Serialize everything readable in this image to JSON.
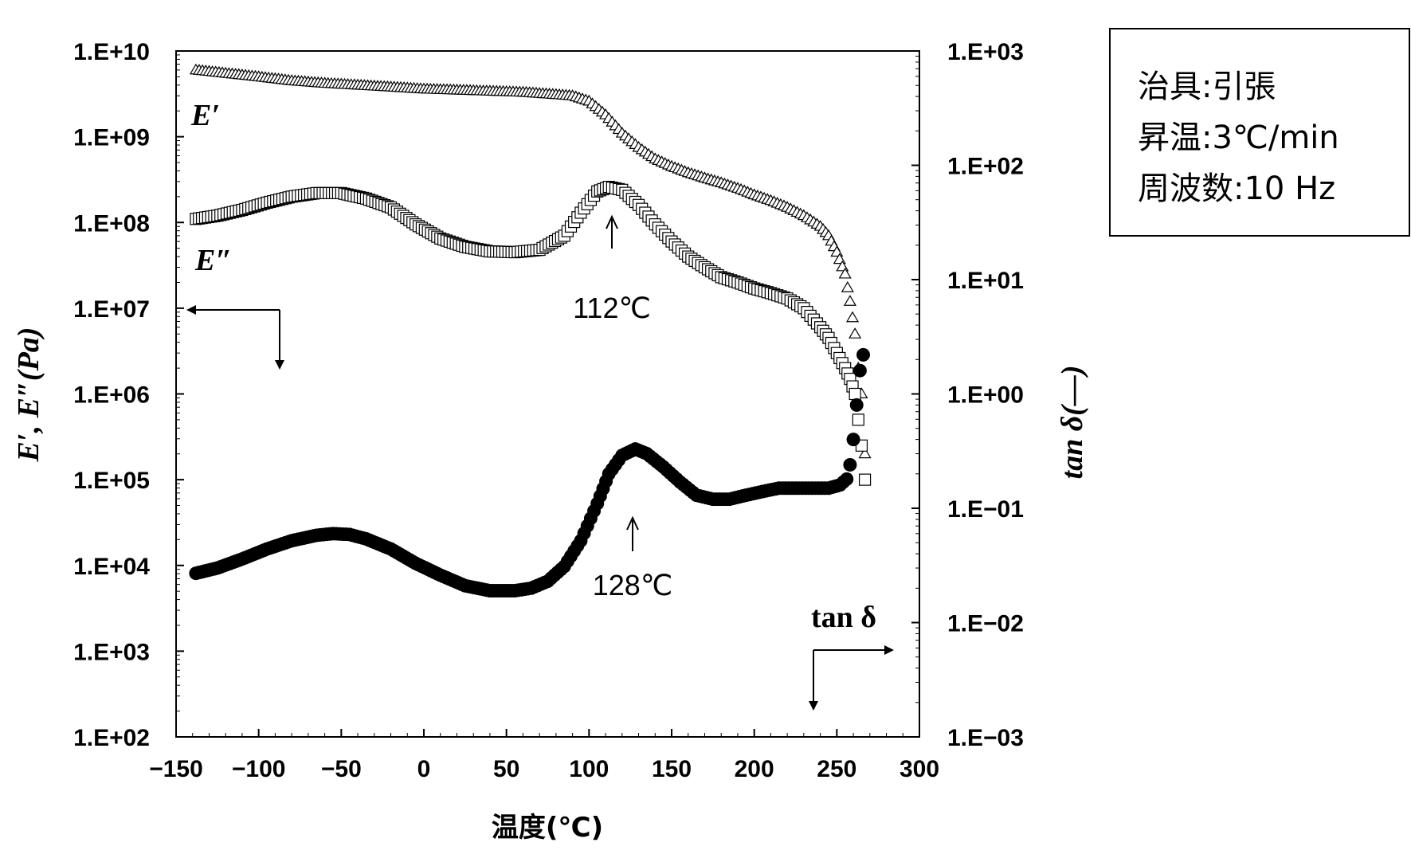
{
  "chart_data": {
    "type": "scatter",
    "xlabel": "温度(℃)",
    "ylabel_left": "E′, E″(Pa)",
    "ylabel_right": "tan δ(—)",
    "xlim": [
      -150,
      300
    ],
    "ylim_left": [
      100,
      10000000000
    ],
    "ylim_right": [
      0.001,
      1000
    ],
    "yscale": "log",
    "x_ticks": [
      "−150",
      "−100",
      "−50",
      "0",
      "50",
      "100",
      "150",
      "200",
      "250",
      "300"
    ],
    "y_ticks_left": [
      "1.E+02",
      "1.E+03",
      "1.E+04",
      "1.E+05",
      "1.E+06",
      "1.E+07",
      "1.E+08",
      "1.E+09",
      "1.E+10"
    ],
    "y_ticks_right": [
      "1.E−03",
      "1.E−02",
      "1.E−01",
      "1.E+00",
      "1.E+01",
      "1.E+02",
      "1.E+03"
    ],
    "series": [
      {
        "name": "E′",
        "axis": "left",
        "marker": "triangle-open",
        "x": [
          -138,
          -120,
          -100,
          -80,
          -60,
          -40,
          -20,
          0,
          20,
          40,
          60,
          80,
          90,
          100,
          110,
          120,
          130,
          140,
          150,
          160,
          170,
          180,
          190,
          200,
          210,
          220,
          230,
          240,
          245,
          250,
          255,
          258,
          261,
          263,
          265,
          267
        ],
        "y": [
          6000000000,
          5500000000,
          5000000000,
          4500000000,
          4200000000,
          4000000000,
          3800000000,
          3600000000,
          3500000000,
          3400000000,
          3300000000,
          3100000000,
          3000000000,
          2600000000,
          1800000000,
          1100000000,
          750000000,
          550000000,
          450000000,
          380000000,
          330000000,
          290000000,
          250000000,
          210000000,
          180000000,
          150000000,
          120000000,
          90000000,
          70000000,
          45000000,
          25000000,
          12000000,
          5000000,
          2000000,
          1000000,
          200000
        ]
      },
      {
        "name": "E″",
        "axis": "left",
        "marker": "square-open",
        "x": [
          -138,
          -125,
          -110,
          -95,
          -80,
          -65,
          -50,
          -35,
          -20,
          -5,
          10,
          25,
          40,
          55,
          70,
          85,
          95,
          105,
          112,
          120,
          130,
          140,
          150,
          160,
          170,
          180,
          190,
          200,
          210,
          220,
          230,
          240,
          245,
          250,
          255,
          258,
          261,
          263,
          265,
          267
        ],
        "y": [
          110000000,
          120000000,
          140000000,
          170000000,
          200000000,
          220000000,
          220000000,
          190000000,
          150000000,
          95000000,
          65000000,
          52000000,
          46000000,
          45000000,
          48000000,
          70000000,
          130000000,
          230000000,
          260000000,
          240000000,
          160000000,
          95000000,
          60000000,
          40000000,
          30000000,
          23000000,
          20000000,
          17000000,
          15000000,
          13000000,
          10000000,
          6000000,
          4500000,
          3000000,
          2000000,
          1500000,
          1000000,
          500000,
          250000,
          100000
        ]
      },
      {
        "name": "tan δ",
        "axis": "right",
        "marker": "circle-filled",
        "x": [
          -138,
          -125,
          -110,
          -95,
          -80,
          -65,
          -55,
          -45,
          -35,
          -20,
          -5,
          10,
          25,
          40,
          55,
          65,
          75,
          85,
          95,
          105,
          112,
          120,
          128,
          135,
          145,
          155,
          165,
          175,
          185,
          195,
          205,
          215,
          225,
          235,
          245,
          252,
          256,
          258,
          260,
          262,
          264,
          266
        ],
        "y": [
          0.027,
          0.03,
          0.036,
          0.044,
          0.052,
          0.058,
          0.06,
          0.059,
          0.054,
          0.044,
          0.033,
          0.026,
          0.021,
          0.019,
          0.019,
          0.02,
          0.023,
          0.031,
          0.052,
          0.11,
          0.2,
          0.29,
          0.33,
          0.3,
          0.23,
          0.17,
          0.13,
          0.12,
          0.12,
          0.13,
          0.14,
          0.15,
          0.15,
          0.15,
          0.15,
          0.16,
          0.18,
          0.24,
          0.4,
          0.8,
          1.6,
          2.2
        ]
      }
    ],
    "series_labels": {
      "E_prime": "E′",
      "E_double_prime": "E″",
      "tan_delta": "tan δ"
    },
    "annotations": [
      {
        "text": "112℃",
        "x": 112
      },
      {
        "text": "128℃",
        "x": 128
      }
    ],
    "grid": false,
    "legend": "none"
  },
  "info_box": {
    "line1": "治具:引張",
    "line2": "昇温:3℃/min",
    "line3": "周波数:10 Hz"
  }
}
